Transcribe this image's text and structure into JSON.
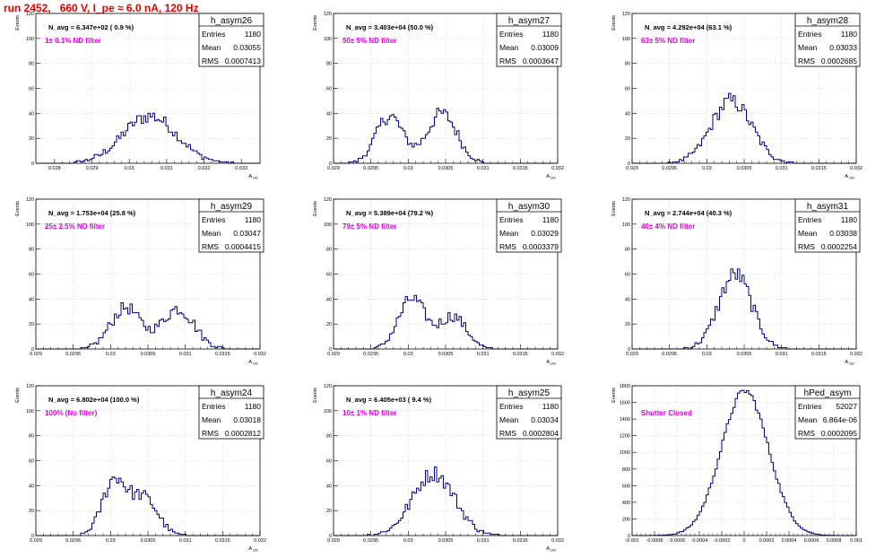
{
  "header": {
    "title": "run 2452,   660 V, I_pe ≈ 6.0 nA, 120 Hz"
  },
  "stats_labels": {
    "entries": "Entries",
    "mean": "Mean",
    "rms": "RMS"
  },
  "colors": {
    "histogram": "#000080",
    "grid": "#c8c8c8",
    "annotation": "#e000e0",
    "title": "#e00000"
  },
  "chart_data": [
    {
      "type": "histogram",
      "name": "h_asym26",
      "ylabel": "Events",
      "xlabel": "A_UID",
      "navg": "N_avg = 6.347e+02 ( 0.9 %)",
      "filter": "1± 0.1% ND filter",
      "entries": "1180",
      "mean": "0.03055",
      "rms": "0.0007413",
      "xlim": [
        0.0275,
        0.0335
      ],
      "ylim": [
        0,
        120
      ],
      "xticks": [
        0.028,
        0.029,
        0.03,
        0.031,
        0.032,
        0.033
      ],
      "xticklabels": [
        "0.028",
        "0.029",
        "0.03",
        "0.031",
        "0.032",
        "0.033"
      ],
      "yticks": [
        0,
        20,
        40,
        60,
        80,
        100,
        120
      ],
      "peaks": [
        {
          "mu": 0.03055,
          "sigma": 0.00072,
          "amp": 38
        }
      ]
    },
    {
      "type": "histogram",
      "name": "h_asym27",
      "ylabel": "Events",
      "xlabel": "A_UID",
      "navg": "N_avg = 3.403e+04 (50.0 %)",
      "filter": "50± 5% ND filter",
      "entries": "1180",
      "mean": "0.03009",
      "rms": "0.0003647",
      "xlim": [
        0.029,
        0.032
      ],
      "ylim": [
        0,
        120
      ],
      "xticks": [
        0.029,
        0.0295,
        0.03,
        0.0305,
        0.031,
        0.0315,
        0.032
      ],
      "xticklabels": [
        "0.029",
        "0.0295",
        "0.03",
        "0.0305",
        "0.031",
        "0.0315",
        "0.032"
      ],
      "yticks": [
        0,
        20,
        40,
        60,
        80,
        100,
        120
      ],
      "peaks": [
        {
          "mu": 0.02975,
          "sigma": 0.00018,
          "amp": 38
        },
        {
          "mu": 0.03045,
          "sigma": 0.0002,
          "amp": 40
        }
      ]
    },
    {
      "type": "histogram",
      "name": "h_asym28",
      "ylabel": "Events",
      "xlabel": "A_UID",
      "navg": "N_avg = 4.292e+04 (63.1 %)",
      "filter": "63± 5% ND filter",
      "entries": "1180",
      "mean": "0.03033",
      "rms": "0.0002685",
      "xlim": [
        0.029,
        0.032
      ],
      "ylim": [
        0,
        120
      ],
      "xticks": [
        0.029,
        0.0295,
        0.03,
        0.0305,
        0.031,
        0.0315,
        0.032
      ],
      "xticklabels": [
        "0.029",
        "0.0295",
        "0.03",
        "0.0305",
        "0.031",
        "0.0315",
        "0.032"
      ],
      "yticks": [
        0,
        20,
        40,
        60,
        80,
        100,
        120
      ],
      "peaks": [
        {
          "mu": 0.03033,
          "sigma": 0.00027,
          "amp": 50
        }
      ]
    },
    {
      "type": "histogram",
      "name": "h_asym29",
      "ylabel": "Events",
      "xlabel": "A_UID",
      "navg": "N_avg = 1.753e+04 (25.8 %)",
      "filter": "25± 2.5% ND filter",
      "entries": "1180",
      "mean": "0.03047",
      "rms": "0.0004415",
      "xlim": [
        0.029,
        0.032
      ],
      "ylim": [
        0,
        120
      ],
      "xticks": [
        0.029,
        0.0295,
        0.03,
        0.0305,
        0.031,
        0.0315,
        0.032
      ],
      "xticklabels": [
        "0.029",
        "0.0295",
        "0.03",
        "0.0305",
        "0.031",
        "0.0315",
        "0.032"
      ],
      "yticks": [
        0,
        20,
        40,
        60,
        80,
        100,
        120
      ],
      "peaks": [
        {
          "mu": 0.0302,
          "sigma": 0.0002,
          "amp": 33
        },
        {
          "mu": 0.0309,
          "sigma": 0.00022,
          "amp": 32
        }
      ]
    },
    {
      "type": "histogram",
      "name": "h_asym30",
      "ylabel": "Events",
      "xlabel": "A_UID",
      "navg": "N_avg = 5.389e+04 (79.2 %)",
      "filter": "79± 5% ND filter",
      "entries": "1180",
      "mean": "0.03029",
      "rms": "0.0003379",
      "xlim": [
        0.029,
        0.032
      ],
      "ylim": [
        0,
        120
      ],
      "xticks": [
        0.029,
        0.0295,
        0.03,
        0.0305,
        0.031,
        0.0315,
        0.032
      ],
      "xticklabels": [
        "0.029",
        "0.0295",
        "0.03",
        "0.0305",
        "0.031",
        "0.0315",
        "0.032"
      ],
      "yticks": [
        0,
        20,
        40,
        60,
        80,
        100,
        120
      ],
      "peaks": [
        {
          "mu": 0.03005,
          "sigma": 0.00018,
          "amp": 40
        },
        {
          "mu": 0.0306,
          "sigma": 0.00018,
          "amp": 26
        }
      ]
    },
    {
      "type": "histogram",
      "name": "h_asym31",
      "ylabel": "Events",
      "xlabel": "A_UID",
      "navg": "N_avg = 2.744e+04 (40.3 %)",
      "filter": "40± 4% ND filter",
      "entries": "1180",
      "mean": "0.03038",
      "rms": "0.0002254",
      "xlim": [
        0.029,
        0.032
      ],
      "ylim": [
        0,
        120
      ],
      "xticks": [
        0.029,
        0.0295,
        0.03,
        0.0305,
        0.031,
        0.0315,
        0.032
      ],
      "xticklabels": [
        "0.029",
        "0.0295",
        "0.03",
        "0.0305",
        "0.031",
        "0.0315",
        "0.032"
      ],
      "yticks": [
        0,
        20,
        40,
        60,
        80,
        100,
        120
      ],
      "peaks": [
        {
          "mu": 0.03038,
          "sigma": 0.00022,
          "amp": 60
        }
      ]
    },
    {
      "type": "histogram",
      "name": "h_asym24",
      "ylabel": "Events",
      "xlabel": "A_UID",
      "navg": "N_avg = 6.802e+04 (100.0 %)",
      "filter": "100% (No filter)",
      "entries": "1180",
      "mean": "0.03018",
      "rms": "0.0002812",
      "xlim": [
        0.029,
        0.032
      ],
      "ylim": [
        0,
        120
      ],
      "xticks": [
        0.029,
        0.0295,
        0.03,
        0.0305,
        0.031,
        0.0315,
        0.032
      ],
      "xticklabels": [
        "0.029",
        "0.0295",
        "0.03",
        "0.0305",
        "0.031",
        "0.0315",
        "0.032"
      ],
      "yticks": [
        0,
        20,
        40,
        60,
        80,
        100,
        120
      ],
      "peaks": [
        {
          "mu": 0.03005,
          "sigma": 0.00016,
          "amp": 44
        },
        {
          "mu": 0.03045,
          "sigma": 0.00018,
          "amp": 30
        }
      ]
    },
    {
      "type": "histogram",
      "name": "h_asym25",
      "ylabel": "Events",
      "xlabel": "A_UID",
      "navg": "N_avg = 6.405e+03 ( 9.4 %)",
      "filter": "10± 1% ND filter",
      "entries": "1180",
      "mean": "0.03034",
      "rms": "0.0002804",
      "xlim": [
        0.029,
        0.032
      ],
      "ylim": [
        0,
        120
      ],
      "xticks": [
        0.029,
        0.0295,
        0.03,
        0.0305,
        0.031,
        0.0315,
        0.032
      ],
      "xticklabels": [
        "0.029",
        "0.0295",
        "0.03",
        "0.0305",
        "0.031",
        "0.0315",
        "0.032"
      ],
      "yticks": [
        0,
        20,
        40,
        60,
        80,
        100,
        120
      ],
      "peaks": [
        {
          "mu": 0.03034,
          "sigma": 0.00028,
          "amp": 50
        }
      ]
    },
    {
      "type": "histogram",
      "name": "hPed_asym",
      "ylabel": "Events",
      "xlabel": "",
      "navg": "",
      "filter": "Shutter Closed",
      "entries": "52027",
      "mean": "6.864e-06",
      "rms": "0.0002095",
      "xlim": [
        -0.001,
        0.001
      ],
      "ylim": [
        0,
        1800
      ],
      "xticks": [
        -0.001,
        -0.0008,
        -0.0006,
        -0.0004,
        -0.0002,
        0,
        0.0002,
        0.0004,
        0.0006,
        0.0008,
        0.001
      ],
      "xticklabels": [
        "-0.001",
        "-0.0008",
        "-0.0006",
        "-0.0004",
        "-0.0002",
        "0",
        "0.0002",
        "0.0004",
        "0.0006",
        "0.0008",
        "0.001"
      ],
      "yticks": [
        0,
        200,
        400,
        600,
        800,
        1000,
        1200,
        1400,
        1600,
        1800
      ],
      "peaks": [
        {
          "mu": 6.9e-06,
          "sigma": 0.00021,
          "amp": 1740
        }
      ]
    }
  ]
}
